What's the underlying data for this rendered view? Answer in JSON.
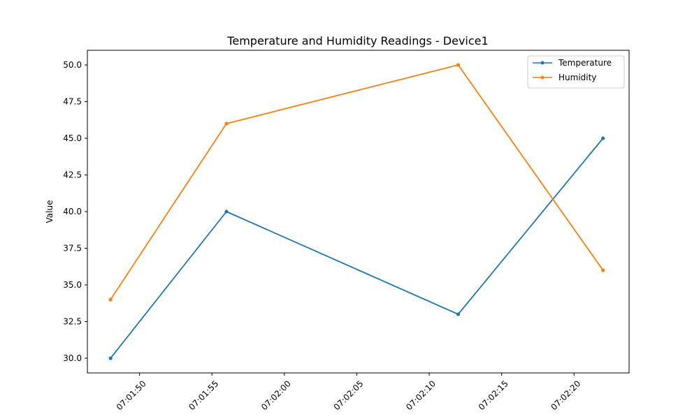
{
  "chart_data": {
    "type": "line",
    "title": "Temperature and Humidity Readings - Device1",
    "xlabel": "",
    "ylabel": "Value",
    "x": [
      "07:01:48",
      "07:01:56",
      "07:02:12",
      "07:02:22"
    ],
    "series": [
      {
        "name": "Temperature",
        "color": "#1f77b4",
        "values": [
          30,
          40,
          33,
          45
        ]
      },
      {
        "name": "Humidity",
        "color": "#ff7f0e",
        "values": [
          34,
          46,
          50,
          36
        ]
      }
    ],
    "xticks": [
      "07:01:50",
      "07:01:55",
      "07:02:00",
      "07:02:05",
      "07:02:10",
      "07:02:15",
      "07:02:20"
    ],
    "yticks": [
      "30.0",
      "32.5",
      "35.0",
      "37.5",
      "40.0",
      "42.5",
      "45.0",
      "47.5",
      "50.0"
    ],
    "xlim": [
      "07:01:46.4",
      "07:02:23.8"
    ],
    "ylim": [
      29.0,
      51.0
    ],
    "grid": false,
    "legend_position": "top-right"
  }
}
